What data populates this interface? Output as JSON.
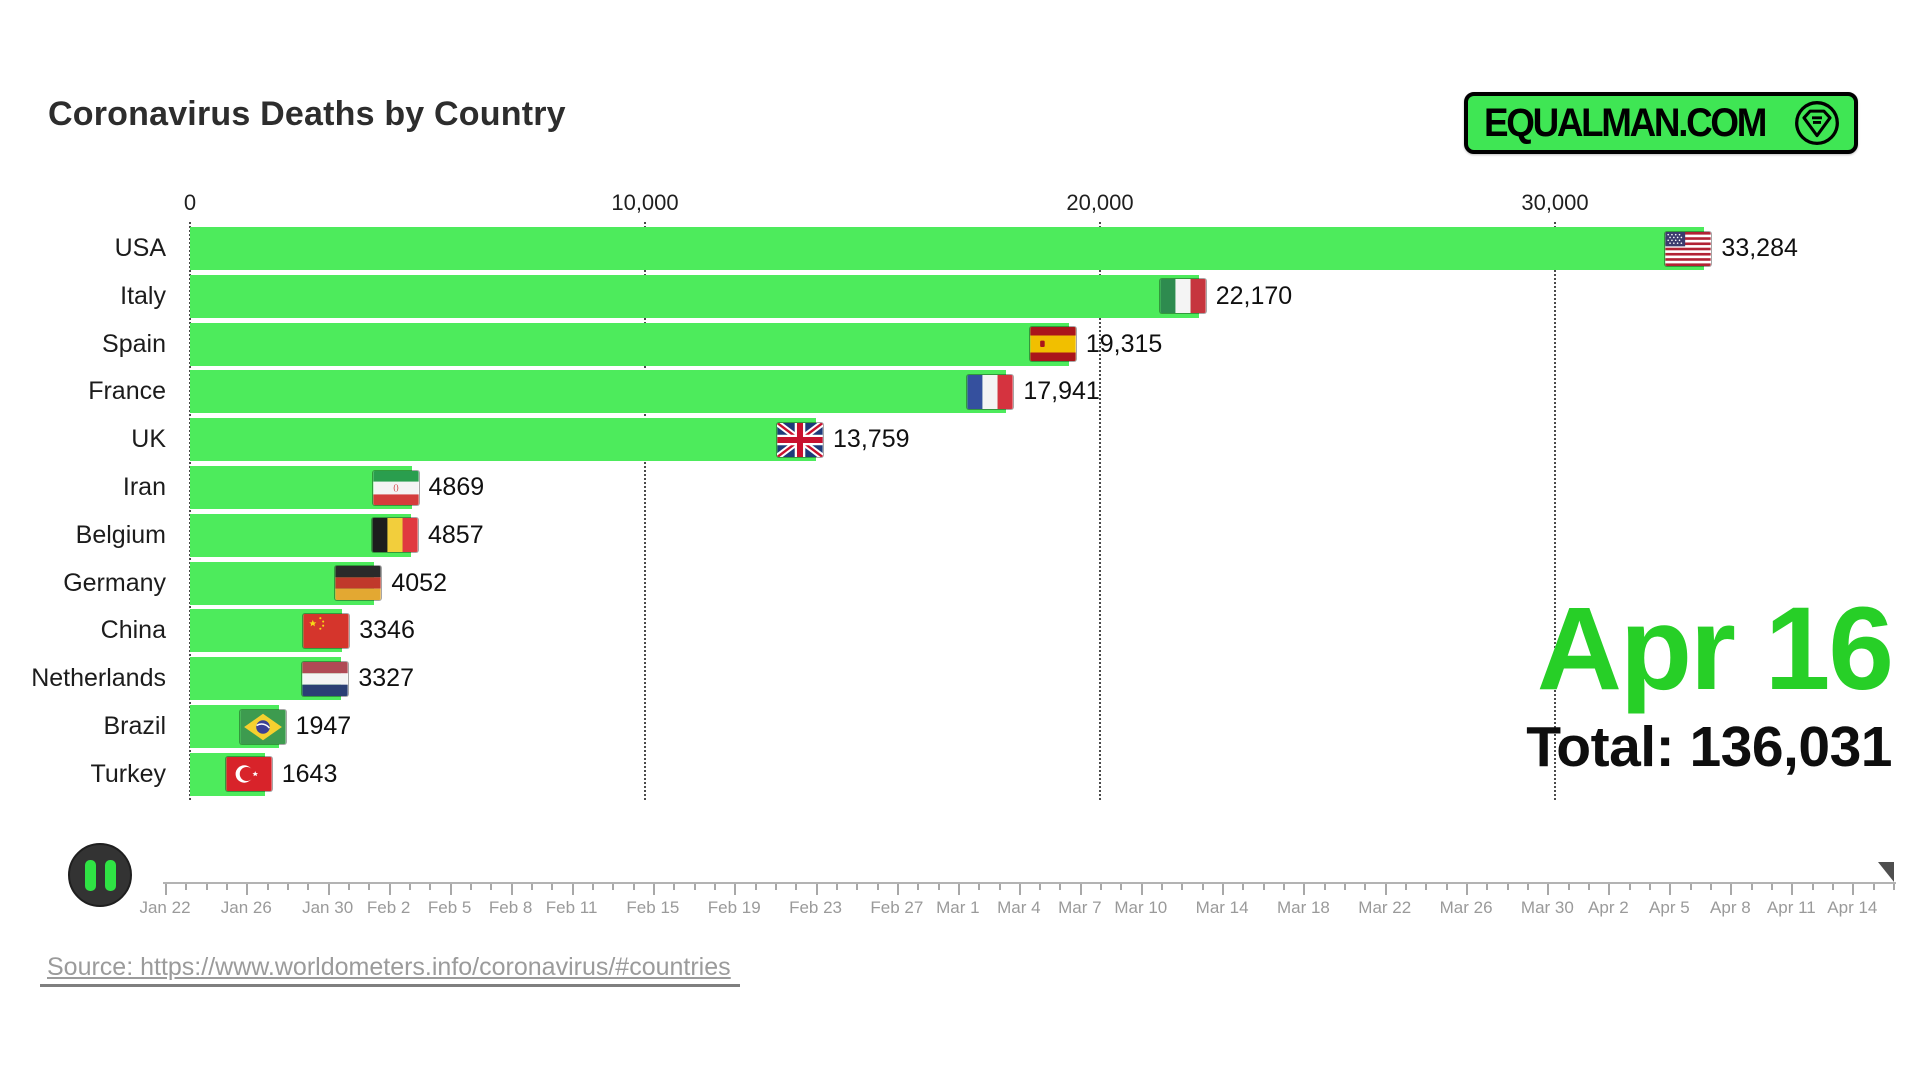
{
  "header": {
    "title": "Coronavirus Deaths by Country",
    "logo": {
      "text": "EQUALMAN.COM",
      "icon": "diamond-equals-icon",
      "bg_color": "#3fe654"
    }
  },
  "chart_data": {
    "type": "bar",
    "orientation": "horizontal",
    "title": "Coronavirus Deaths by Country",
    "bar_color": "#4deb5c",
    "grid": "vertical-dotted",
    "xlim": [
      0,
      37500
    ],
    "x_ticks": [
      {
        "value": 0,
        "label": "0"
      },
      {
        "value": 10000,
        "label": "10,000"
      },
      {
        "value": 20000,
        "label": "20,000"
      },
      {
        "value": 30000,
        "label": "30,000"
      }
    ],
    "categories": [
      "USA",
      "Italy",
      "Spain",
      "France",
      "UK",
      "Iran",
      "Belgium",
      "Germany",
      "China",
      "Netherlands",
      "Brazil",
      "Turkey"
    ],
    "values": [
      33284,
      22170,
      19315,
      17941,
      13759,
      4869,
      4857,
      4052,
      3346,
      3327,
      1947,
      1643
    ],
    "value_labels": [
      "33,284",
      "22,170",
      "19,315",
      "17,941",
      "13,759",
      "4869",
      "4857",
      "4052",
      "3346",
      "3327",
      "1947",
      "1643"
    ],
    "flags": [
      "usa-flag",
      "italy-flag",
      "spain-flag",
      "france-flag",
      "uk-flag",
      "iran-flag",
      "belgium-flag",
      "germany-flag",
      "china-flag",
      "netherlands-flag",
      "brazil-flag",
      "turkey-flag"
    ]
  },
  "status": {
    "date": "Apr 16",
    "date_color": "#27cf27",
    "total": "Total: 136,031"
  },
  "player": {
    "state": "pause",
    "icon": "pause-icon"
  },
  "timeline": {
    "end_day": 85,
    "playhead_day": 85,
    "ticks": [
      {
        "day": 0,
        "label": "Jan 22"
      },
      {
        "day": 4,
        "label": "Jan 26"
      },
      {
        "day": 8,
        "label": "Jan 30"
      },
      {
        "day": 11,
        "label": "Feb 2"
      },
      {
        "day": 14,
        "label": "Feb 5"
      },
      {
        "day": 17,
        "label": "Feb 8"
      },
      {
        "day": 20,
        "label": "Feb 11"
      },
      {
        "day": 24,
        "label": "Feb 15"
      },
      {
        "day": 28,
        "label": "Feb 19"
      },
      {
        "day": 32,
        "label": "Feb 23"
      },
      {
        "day": 36,
        "label": "Feb 27"
      },
      {
        "day": 39,
        "label": "Mar 1"
      },
      {
        "day": 42,
        "label": "Mar 4"
      },
      {
        "day": 45,
        "label": "Mar 7"
      },
      {
        "day": 48,
        "label": "Mar 10"
      },
      {
        "day": 52,
        "label": "Mar 14"
      },
      {
        "day": 56,
        "label": "Mar 18"
      },
      {
        "day": 60,
        "label": "Mar 22"
      },
      {
        "day": 64,
        "label": "Mar 26"
      },
      {
        "day": 68,
        "label": "Mar 30"
      },
      {
        "day": 71,
        "label": "Apr 2"
      },
      {
        "day": 74,
        "label": "Apr 5"
      },
      {
        "day": 77,
        "label": "Apr 8"
      },
      {
        "day": 80,
        "label": "Apr 11"
      },
      {
        "day": 83,
        "label": "Apr 14"
      }
    ]
  },
  "source": {
    "prefix": "Source: ",
    "url": "https://www.worldometers.info/coronavirus/#countries"
  }
}
